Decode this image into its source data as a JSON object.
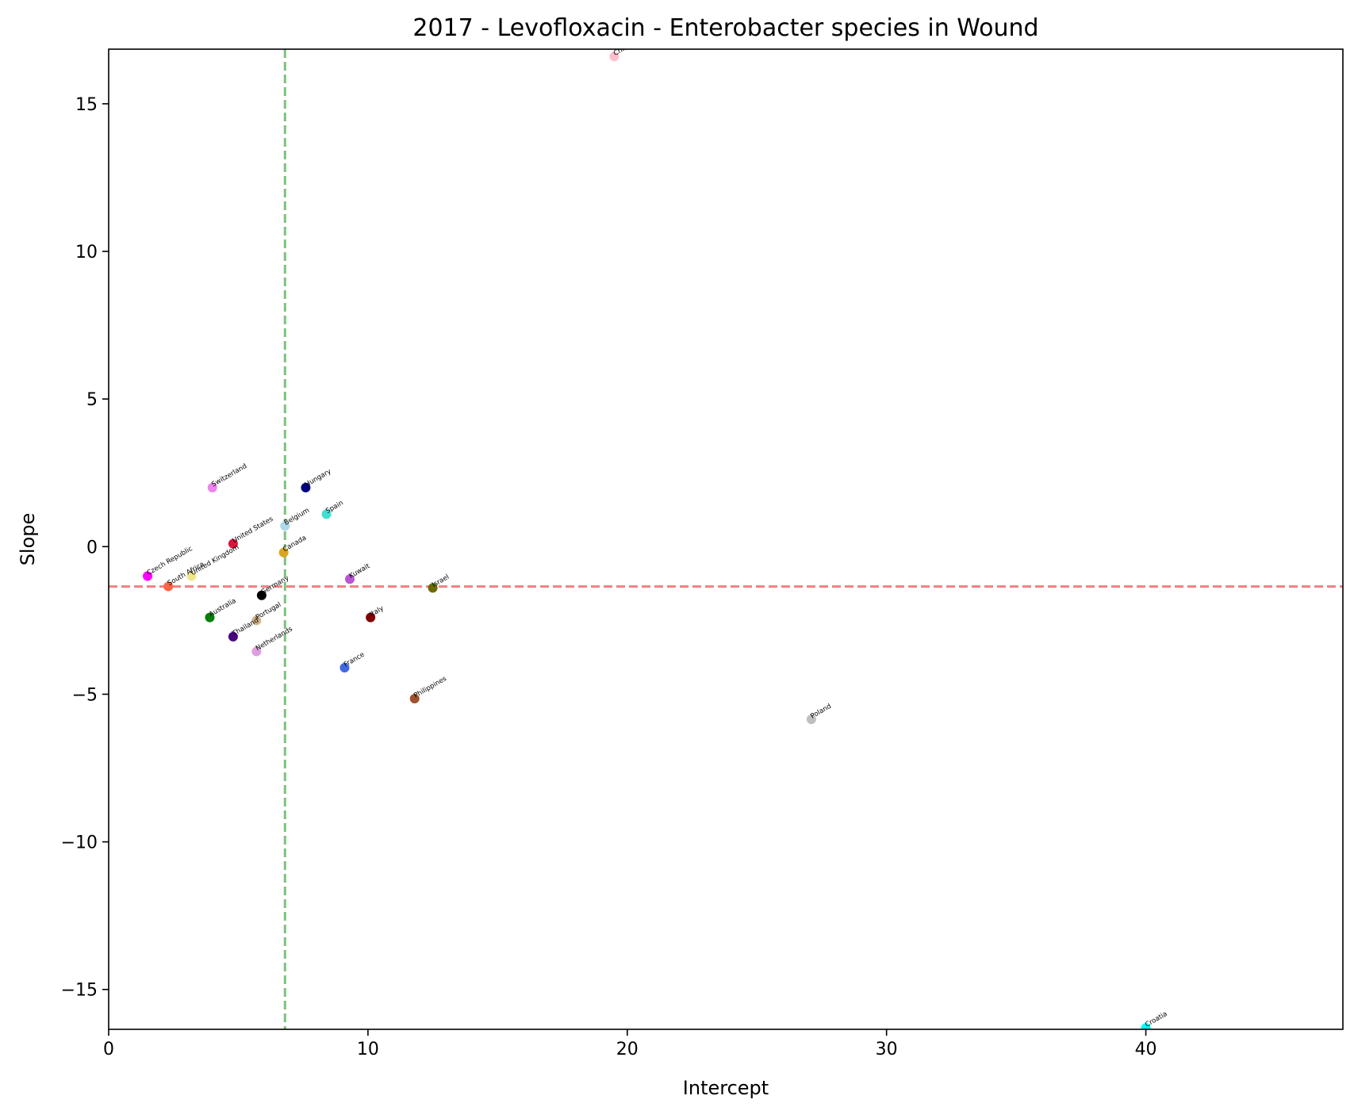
{
  "chart_data": {
    "type": "scatter",
    "title": "2017 - Levofloxacin - Enterobacter species in Wound",
    "xlabel": "Intercept",
    "ylabel": "Slope",
    "xlim": [
      0,
      47.6
    ],
    "ylim": [
      -16.35,
      16.85
    ],
    "xticks": [
      0,
      10,
      20,
      30,
      40
    ],
    "xtick_labels": [
      "0",
      "10",
      "20",
      "30",
      "40"
    ],
    "yticks": [
      -15,
      -10,
      -5,
      0,
      5,
      10,
      15
    ],
    "ytick_labels": [
      "−15",
      "−10",
      "−5",
      "0",
      "5",
      "10",
      "15"
    ],
    "grid": false,
    "reference_lines": [
      {
        "orientation": "vertical",
        "value": 6.8,
        "color": "#7cc27c",
        "style": "dashed"
      },
      {
        "orientation": "horizontal",
        "value": -1.35,
        "color": "#f08080",
        "style": "dashed"
      }
    ],
    "points": [
      {
        "label": "China",
        "x": 19.5,
        "y": 16.6,
        "color": "#ffc0cb"
      },
      {
        "label": "Switzerland",
        "x": 4.0,
        "y": 2.0,
        "color": "#ee82ee"
      },
      {
        "label": "Hungary",
        "x": 7.6,
        "y": 2.0,
        "color": "#000080"
      },
      {
        "label": "Spain",
        "x": 8.4,
        "y": 1.1,
        "color": "#40e0d0"
      },
      {
        "label": "Belgium",
        "x": 6.8,
        "y": 0.7,
        "color": "#add8e6"
      },
      {
        "label": "United States",
        "x": 4.8,
        "y": 0.1,
        "color": "#dc143c"
      },
      {
        "label": "Canada",
        "x": 6.75,
        "y": -0.2,
        "color": "#daa520"
      },
      {
        "label": "Czech Republic",
        "x": 1.5,
        "y": -1.0,
        "color": "#ff00ff"
      },
      {
        "label": "United Kingdom",
        "x": 3.2,
        "y": -1.0,
        "color": "#f0e68c"
      },
      {
        "label": "South Africa",
        "x": 2.3,
        "y": -1.35,
        "color": "#ff6347"
      },
      {
        "label": "Kuwait",
        "x": 9.3,
        "y": -1.1,
        "color": "#ba55d3"
      },
      {
        "label": "Israel",
        "x": 12.5,
        "y": -1.4,
        "color": "#6b6b00"
      },
      {
        "label": "Germany",
        "x": 5.9,
        "y": -1.65,
        "color": "#000000"
      },
      {
        "label": "Australia",
        "x": 3.9,
        "y": -2.4,
        "color": "#008000"
      },
      {
        "label": "Portugal",
        "x": 5.7,
        "y": -2.5,
        "color": "#d2b48c"
      },
      {
        "label": "Italy",
        "x": 10.1,
        "y": -2.4,
        "color": "#800000"
      },
      {
        "label": "Thailand",
        "x": 4.8,
        "y": -3.05,
        "color": "#4b0082"
      },
      {
        "label": "Netherlands",
        "x": 5.7,
        "y": -3.55,
        "color": "#dda0dd"
      },
      {
        "label": "France",
        "x": 9.1,
        "y": -4.1,
        "color": "#4169e1"
      },
      {
        "label": "Philippines",
        "x": 11.8,
        "y": -5.15,
        "color": "#a0522d"
      },
      {
        "label": "Poland",
        "x": 27.1,
        "y": -5.85,
        "color": "#c0c0c0"
      },
      {
        "label": "Croatia",
        "x": 40.0,
        "y": -16.3,
        "color": "#00ffff"
      }
    ]
  }
}
